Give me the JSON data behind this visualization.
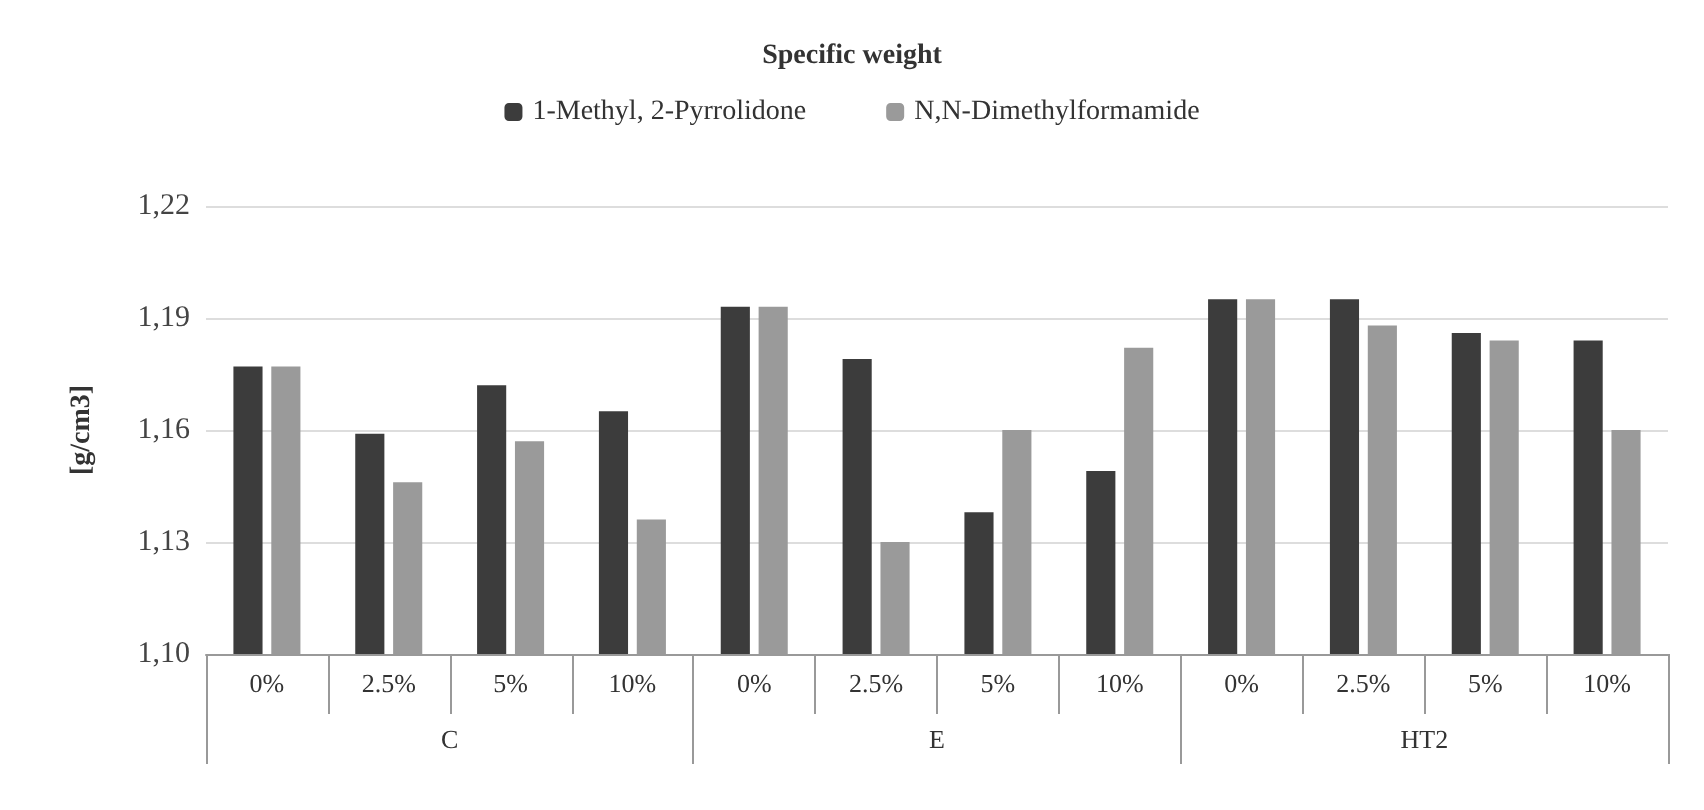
{
  "chart_data": {
    "type": "bar",
    "title": "Specific weight",
    "ylabel": "[g/cm3]",
    "categories": [
      "0%",
      "2.5%",
      "5%",
      "10%",
      "0%",
      "2.5%",
      "5%",
      "10%",
      "0%",
      "2.5%",
      "5%",
      "10%"
    ],
    "annotations": [
      "C",
      "E",
      "HT2"
    ],
    "series": [
      {
        "name": "1-Methyl, 2-Pyrrolidone",
        "color": "#3c3c3c",
        "values": [
          1.177,
          1.159,
          1.172,
          1.165,
          1.193,
          1.179,
          1.138,
          1.149,
          1.195,
          1.195,
          1.186,
          1.184
        ]
      },
      {
        "name": "N,N-Dimethylformamide",
        "color": "#9a9a9a",
        "values": [
          1.177,
          1.146,
          1.157,
          1.136,
          1.193,
          1.13,
          1.16,
          1.182,
          1.195,
          1.188,
          1.184,
          1.16
        ]
      }
    ],
    "ylim": [
      1.1,
      1.22
    ],
    "yticks": [
      {
        "value": 1.1,
        "label": "1,10"
      },
      {
        "value": 1.13,
        "label": "1,13"
      },
      {
        "value": 1.16,
        "label": "1,16"
      },
      {
        "value": 1.19,
        "label": "1,19"
      },
      {
        "value": 1.22,
        "label": "1,22"
      }
    ],
    "grid": "y",
    "legend": "top"
  }
}
